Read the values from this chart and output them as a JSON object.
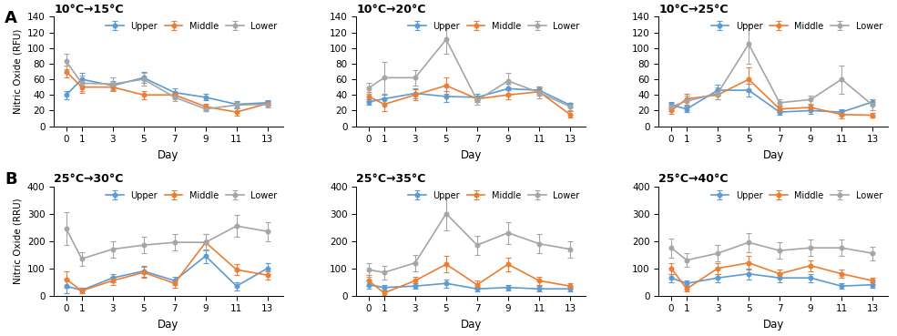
{
  "days": [
    0,
    1,
    3,
    5,
    7,
    9,
    11,
    13
  ],
  "panels_top": [
    {
      "title": "10°C→15°C",
      "upper": [
        40,
        60,
        52,
        62,
        43,
        37,
        28,
        30
      ],
      "middle": [
        70,
        50,
        50,
        40,
        40,
        25,
        18,
        29
      ],
      "lower": [
        83,
        55,
        54,
        60,
        37,
        22,
        27,
        28
      ],
      "upper_err": [
        5,
        8,
        6,
        7,
        5,
        4,
        4,
        3
      ],
      "middle_err": [
        8,
        7,
        5,
        5,
        4,
        4,
        5,
        3
      ],
      "lower_err": [
        10,
        10,
        8,
        8,
        5,
        3,
        4,
        4
      ],
      "ylim": [
        0,
        140
      ]
    },
    {
      "title": "10°C→20°C",
      "upper": [
        31,
        35,
        42,
        38,
        37,
        48,
        46,
        27
      ],
      "middle": [
        38,
        28,
        40,
        52,
        35,
        40,
        44,
        15
      ],
      "lower": [
        49,
        62,
        62,
        111,
        33,
        58,
        43,
        25
      ],
      "upper_err": [
        4,
        5,
        6,
        7,
        4,
        6,
        5,
        3
      ],
      "middle_err": [
        6,
        9,
        7,
        10,
        4,
        6,
        5,
        4
      ],
      "lower_err": [
        7,
        20,
        10,
        18,
        5,
        10,
        7,
        5
      ],
      "ylim": [
        0,
        140
      ]
    },
    {
      "title": "10°C→25°C",
      "upper": [
        27,
        22,
        46,
        46,
        18,
        20,
        18,
        31
      ],
      "middle": [
        20,
        35,
        40,
        60,
        22,
        24,
        15,
        14
      ],
      "lower": [
        25,
        32,
        42,
        105,
        30,
        34,
        60,
        27
      ],
      "upper_err": [
        4,
        4,
        7,
        8,
        3,
        4,
        4,
        4
      ],
      "middle_err": [
        4,
        7,
        6,
        15,
        4,
        4,
        5,
        3
      ],
      "lower_err": [
        5,
        7,
        8,
        25,
        5,
        5,
        18,
        7
      ],
      "ylim": [
        0,
        140
      ]
    }
  ],
  "panels_bottom": [
    {
      "title": "25°C→30°C",
      "upper": [
        35,
        20,
        65,
        90,
        55,
        145,
        35,
        100
      ],
      "middle": [
        60,
        18,
        55,
        85,
        45,
        195,
        95,
        75
      ],
      "lower": [
        245,
        135,
        170,
        185,
        195,
        195,
        255,
        235
      ],
      "upper_err": [
        25,
        10,
        15,
        20,
        15,
        25,
        15,
        20
      ],
      "middle_err": [
        30,
        10,
        15,
        20,
        15,
        30,
        20,
        15
      ],
      "lower_err": [
        60,
        25,
        30,
        30,
        30,
        30,
        40,
        35
      ],
      "ylim": [
        0,
        400
      ]
    },
    {
      "title": "25°C→35°C",
      "upper": [
        40,
        30,
        35,
        45,
        25,
        30,
        25,
        25
      ],
      "middle": [
        55,
        10,
        55,
        115,
        40,
        115,
        55,
        35
      ],
      "lower": [
        95,
        85,
        120,
        300,
        185,
        230,
        190,
        170
      ],
      "upper_err": [
        15,
        10,
        10,
        15,
        8,
        10,
        10,
        8
      ],
      "middle_err": [
        20,
        10,
        15,
        30,
        15,
        25,
        15,
        10
      ],
      "lower_err": [
        25,
        25,
        30,
        60,
        35,
        40,
        35,
        30
      ],
      "ylim": [
        0,
        400
      ]
    },
    {
      "title": "25°C→40°C",
      "upper": [
        65,
        45,
        65,
        80,
        65,
        65,
        35,
        40
      ],
      "middle": [
        100,
        25,
        100,
        120,
        80,
        110,
        80,
        55
      ],
      "lower": [
        175,
        130,
        155,
        195,
        165,
        175,
        175,
        155
      ],
      "upper_err": [
        15,
        10,
        15,
        20,
        15,
        15,
        10,
        10
      ],
      "middle_err": [
        20,
        10,
        20,
        25,
        15,
        20,
        15,
        12
      ],
      "lower_err": [
        35,
        25,
        30,
        35,
        30,
        30,
        30,
        25
      ],
      "ylim": [
        0,
        400
      ]
    }
  ],
  "colors": {
    "upper": "#5B9BD5",
    "middle": "#ED7D31",
    "lower": "#A5A5A5"
  },
  "label_A": "A",
  "label_B": "B",
  "ylabel_top": "Nitric Oxide (RFU)",
  "ylabel_bottom": "Nitric Oxide (RRU)",
  "xlabel": "Day",
  "legend_labels": [
    "Upper",
    "Middle",
    "Lower"
  ]
}
